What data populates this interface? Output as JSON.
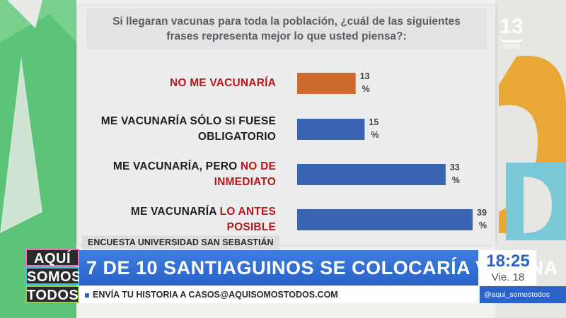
{
  "poll": {
    "question_line1": "Si llegaran vacunas para toda la población, ¿cuál de las siguientes",
    "question_line2": "frases representa mejor lo que usted piensa?:",
    "source": "ENCUESTA UNIVERSIDAD SAN SEBASTIÁN"
  },
  "chart_data": {
    "type": "bar",
    "orientation": "horizontal",
    "title": "Si llegaran vacunas para toda la población, ¿cuál de las siguientes frases representa mejor lo que usted piensa?:",
    "categories": [
      "NO ME VACUNARÍA",
      "ME VACUNARÍA SÓLO SI FUESE OBLIGATORIO",
      "ME VACUNARÍA, PERO NO DE INMEDIATO",
      "ME VACUNARÍA LO ANTES POSIBLE"
    ],
    "category_parts": [
      {
        "line1": [
          {
            "t": "NO ME VACUNARÍA",
            "red": true
          }
        ],
        "line2": []
      },
      {
        "line1": [
          {
            "t": "ME VACUNARÍA ",
            "red": false
          },
          {
            "t": "SÓLO SI FUESE",
            "red": false
          }
        ],
        "line2": [
          {
            "t": "OBLIGATORIO",
            "red": false
          }
        ]
      },
      {
        "line1": [
          {
            "t": "ME VACUNARÍA, PERO ",
            "red": false
          },
          {
            "t": "NO DE",
            "red": true
          }
        ],
        "line2": [
          {
            "t": "INMEDIATO",
            "red": true
          }
        ]
      },
      {
        "line1": [
          {
            "t": "ME VACUNARÍA ",
            "red": false
          },
          {
            "t": "LO ANTES",
            "red": true
          }
        ],
        "line2": [
          {
            "t": "POSIBLE",
            "red": true
          }
        ]
      }
    ],
    "values": [
      13,
      15,
      33,
      39
    ],
    "value_labels": [
      "13",
      "15",
      "33",
      "39"
    ],
    "unit": "%",
    "bar_colors": [
      "#cf6a2d",
      "#3b64b5",
      "#3b64b5",
      "#3b64b5"
    ],
    "xlim": [
      0,
      39
    ],
    "grid": false,
    "legend": "none"
  },
  "lower_third": {
    "logo": [
      "AQUÍ",
      "SOMOS",
      "TODOS"
    ],
    "headline": "7 DE 10 SANTIAGUINOS SE COLOCARÍA VACUNA",
    "ticker": "ENVÍA TU HISTORIA A CASOS@AQUISOMOSTODOS.COM",
    "time": "18:25",
    "day": "Vie. 18",
    "handle": "@aqui_somostodos"
  },
  "bug": {
    "channel": "13",
    "live": "VIVO"
  },
  "colors": {
    "accent_blue": "#2a62c8",
    "highlight_red": "#b7171d",
    "bar_orange": "#cf6a2d",
    "bar_blue": "#3b64b5"
  }
}
